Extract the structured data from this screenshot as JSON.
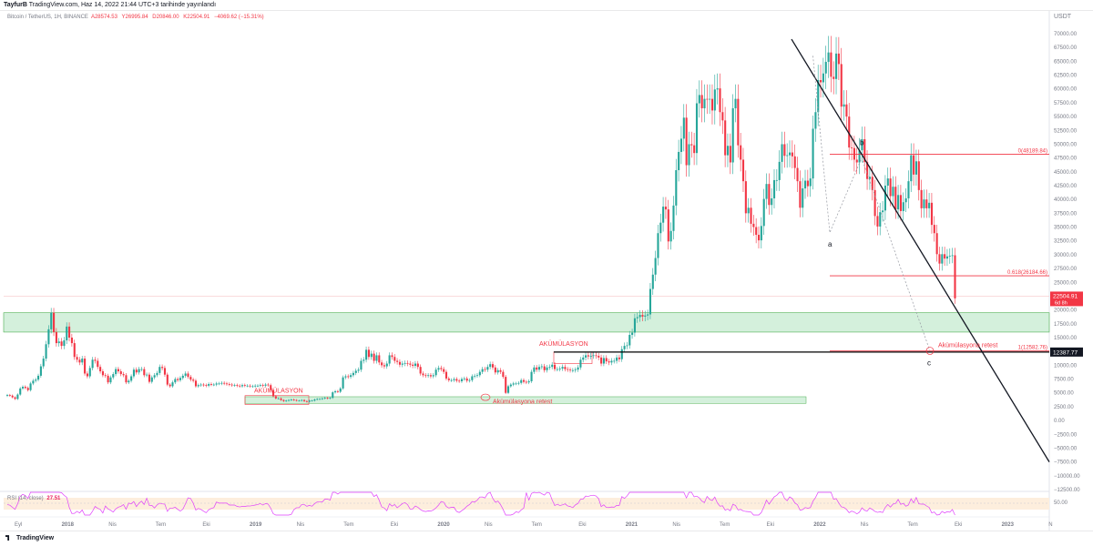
{
  "header": {
    "author": "TayfurB",
    "text": "TradingView.com, Haz 14, 2022 21:44 UTC+3 tarihinde yayınlandı"
  },
  "legend": {
    "symbol": "Bitcoin / TetherUS, 1H, BINANCE",
    "open": "A28574.53",
    "high": "Y26995.84",
    "low": "D20846.00",
    "close": "K22504.91",
    "change": "−4069.62 (−15.31%)"
  },
  "currency": "USDT",
  "colors": {
    "up": "#26a69a",
    "down": "#f23645",
    "fib": "#f23645",
    "zone_fill": "#d4f0dc",
    "zone_stroke": "#4caf50",
    "rsi_line": "#e040fb",
    "rsi_band": "#fdeedd",
    "trend": "#131722"
  },
  "chart_data": {
    "type": "candlestick",
    "y_range": [
      -15000,
      72500
    ],
    "y_ticks": [
      "70000.00",
      "67500.00",
      "65000.00",
      "62500.00",
      "60000.00",
      "57500.00",
      "55000.00",
      "52500.00",
      "50000.00",
      "47500.00",
      "45000.00",
      "42500.00",
      "40000.00",
      "37500.00",
      "35000.00",
      "32500.00",
      "30000.00",
      "27500.00",
      "25000.00",
      "22500.00",
      "20000.00",
      "17500.00",
      "15000.00",
      "12500.00",
      "10000.00",
      "7500.00",
      "5000.00",
      "2500.00",
      "0.00",
      "−2500.00",
      "−5000.00",
      "−7500.00",
      "−10000.00",
      "−12500.00"
    ],
    "x_ticks": [
      "Eyl",
      "2018",
      "Nis",
      "Tem",
      "Eki",
      "2019",
      "Nis",
      "Tem",
      "Eki",
      "2020",
      "Nis",
      "Tem",
      "Eki",
      "2021",
      "Nis",
      "Tem",
      "Eki",
      "2022",
      "Nis",
      "Tem",
      "Eki",
      "2023",
      "N"
    ],
    "week_closes": [
      4600,
      4500,
      4200,
      3900,
      4700,
      5800,
      6100,
      5900,
      5500,
      6700,
      7200,
      7400,
      8100,
      9800,
      11200,
      13800,
      16500,
      19500,
      16000,
      14000,
      14300,
      13500,
      14500,
      17000,
      15000,
      14000,
      11500,
      11000,
      10500,
      11200,
      8500,
      8000,
      9500,
      11000,
      10800,
      9700,
      8900,
      8200,
      8100,
      6900,
      7800,
      8400,
      9300,
      8900,
      8400,
      8200,
      6900,
      7200,
      8000,
      9200,
      8700,
      9300,
      9300,
      8200,
      8300,
      7000,
      7800,
      8200,
      8600,
      9700,
      9500,
      8300,
      6500,
      6200,
      6900,
      7500,
      7300,
      7700,
      8100,
      8500,
      7900,
      7400,
      7200,
      6200,
      6400,
      6500,
      6400,
      6300,
      6600,
      6500,
      6500,
      6700,
      6700,
      6800,
      6700,
      6600,
      6500,
      6400,
      6400,
      6300,
      6200,
      6400,
      6300,
      6300,
      6200,
      6200,
      6300,
      6300,
      6400,
      6300,
      6500,
      6400,
      5500,
      4400,
      4000,
      4000,
      3700,
      3500,
      3600,
      3700,
      3800,
      3700,
      3600,
      3600,
      3700,
      3500,
      3400,
      3600,
      3600,
      3800,
      3900,
      3900,
      4000,
      4100,
      4000,
      4100,
      5100,
      5300,
      5200,
      5800,
      7800,
      8000,
      7900,
      8200,
      8600,
      9000,
      9200,
      10800,
      11000,
      12800,
      11500,
      12100,
      10800,
      11800,
      10500,
      10000,
      9800,
      10300,
      11800,
      11500,
      10800,
      10600,
      10100,
      10300,
      10400,
      10300,
      10100,
      9900,
      10300,
      9700,
      8500,
      8200,
      8100,
      8200,
      8000,
      8200,
      9200,
      9500,
      9300,
      8800,
      7600,
      7300,
      7300,
      7500,
      7200,
      7100,
      7500,
      7600,
      7200,
      7300,
      8000,
      8100,
      8200,
      8800,
      9300,
      9200,
      9700,
      10200,
      9600,
      8700,
      9100,
      8800,
      7900,
      5000,
      6200,
      6500,
      6700,
      6700,
      6800,
      7300,
      7000,
      6900,
      7100,
      8800,
      9600,
      9200,
      9700,
      9800,
      9100,
      9600,
      9700,
      10100,
      9300,
      9300,
      9400,
      9700,
      9300,
      9200,
      9100,
      9100,
      9200,
      9600,
      11000,
      11400,
      11800,
      11600,
      11700,
      11800,
      11700,
      11400,
      10300,
      11300,
      10700,
      10500,
      10800,
      10800,
      11400,
      11100,
      12900,
      13500,
      13600,
      15500,
      15900,
      18500,
      18700,
      19100,
      18800,
      19000,
      19200,
      23800,
      26400,
      29400,
      33900,
      35800,
      38700,
      38200,
      32400,
      34300,
      38900,
      45300,
      48600,
      51000,
      54800,
      46200,
      50000,
      49800,
      48400,
      57400,
      58900,
      56500,
      58200,
      58100,
      58200,
      56100,
      59900,
      60100,
      55800,
      54300,
      48000,
      49700,
      46700,
      56500,
      58200,
      49800,
      47200,
      43300,
      37500,
      38500,
      35600,
      35000,
      33600,
      32600,
      35200,
      40100,
      42800,
      39000,
      40200,
      43500,
      43500,
      46800,
      50000,
      47900,
      48000,
      48500,
      47800,
      45700,
      43300,
      38500,
      42000,
      43400,
      42400,
      43800,
      52800,
      55800,
      61600,
      61200,
      62800,
      64900,
      66600,
      62200,
      61800,
      66400,
      64500,
      56800,
      57200,
      55000,
      49400,
      49300,
      47200,
      46700,
      48900,
      50900,
      46800,
      43700,
      44100,
      41700,
      37000,
      35100,
      37700,
      38000,
      42500,
      43800,
      40600,
      42300,
      38200,
      40800,
      37900,
      39500,
      40200,
      43300,
      48000,
      44500,
      46900,
      41700,
      38400,
      40000,
      38400,
      39400,
      35400,
      33900,
      30100,
      28400,
      30100,
      29300,
      29700,
      29800,
      29900,
      22100
    ]
  },
  "annotations": {
    "fib_0": "0(48189.84)",
    "fib_0618": "0.618(26184.66)",
    "fib_1": "1(12582.76)",
    "price_label": "22504.91",
    "price_sub": "6d 8h",
    "level_label": "12387.77",
    "accum1": "AKÜMÜLASYON",
    "accum2": "AKÜMÜLASYON",
    "retest1": "Akümülasyona retest",
    "retest2": "Akümülasyona retest",
    "wave_a": "a",
    "wave_b": "b",
    "wave_c": "c"
  },
  "rsi": {
    "label": "RSI (14, close)",
    "value": "27.51",
    "tick": "50.00"
  },
  "footer": {
    "brand": "TradingView"
  }
}
